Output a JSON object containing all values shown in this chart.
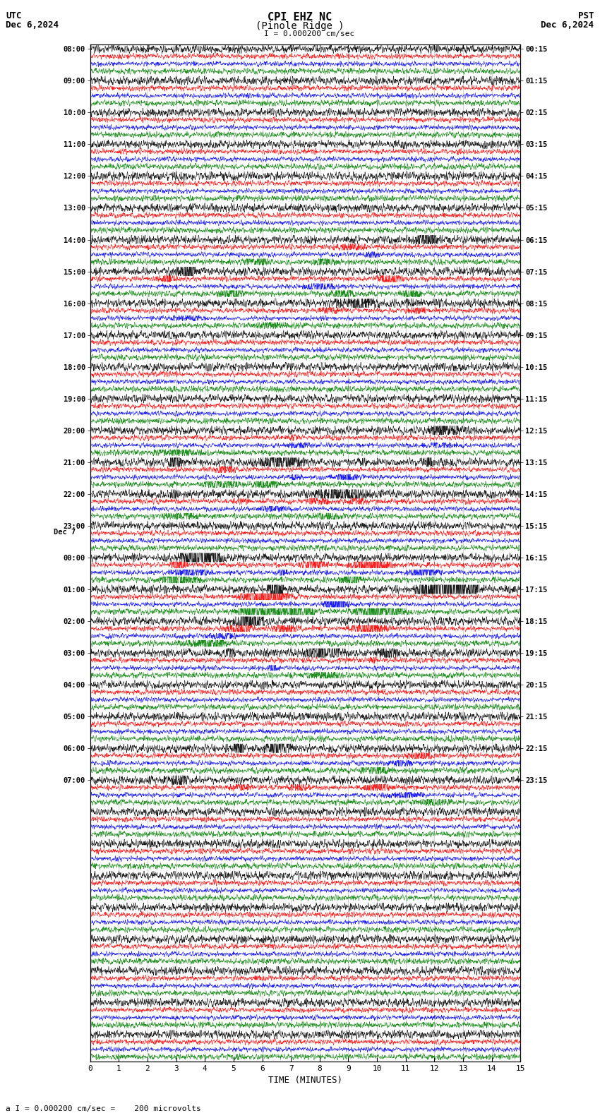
{
  "title_line1": "CPI EHZ NC",
  "title_line2": "(Pinole Ridge )",
  "scale_label": "I = 0.000200 cm/sec",
  "bottom_label": "a I = 0.000200 cm/sec =    200 microvolts",
  "utc_label": "UTC",
  "pst_label": "PST",
  "date_left": "Dec 6,2024",
  "date_right": "Dec 6,2024",
  "xlabel": "TIME (MINUTES)",
  "xlim": [
    0,
    15
  ],
  "xticks": [
    0,
    1,
    2,
    3,
    4,
    5,
    6,
    7,
    8,
    9,
    10,
    11,
    12,
    13,
    14,
    15
  ],
  "num_rows": 32,
  "traces_per_row": 4,
  "colors": [
    "black",
    "red",
    "blue",
    "green"
  ],
  "noise_scale": 0.055,
  "bg_color": "white",
  "grid_color": "#aaaaaa",
  "left_times_utc": [
    "08:00",
    "09:00",
    "10:00",
    "11:00",
    "12:00",
    "13:00",
    "14:00",
    "15:00",
    "16:00",
    "17:00",
    "18:00",
    "19:00",
    "20:00",
    "21:00",
    "22:00",
    "23:00",
    "Dec 7\n00:00",
    "01:00",
    "02:00",
    "03:00",
    "04:00",
    "05:00",
    "06:00",
    "07:00",
    "",
    "",
    "",
    "",
    "",
    "",
    "",
    "",
    "",
    "",
    "",
    "",
    "",
    "",
    "",
    "",
    "",
    "",
    "",
    "",
    "",
    "",
    "",
    "",
    "",
    "",
    "",
    "",
    "",
    "",
    "",
    "",
    "",
    "",
    "",
    "",
    "",
    "",
    "",
    ""
  ],
  "right_times_pst": [
    "00:15",
    "01:15",
    "02:15",
    "03:15",
    "04:15",
    "05:15",
    "06:15",
    "07:15",
    "08:15",
    "09:15",
    "10:15",
    "11:15",
    "12:15",
    "13:15",
    "14:15",
    "15:15",
    "16:15",
    "17:15",
    "18:15",
    "19:15",
    "20:15",
    "21:15",
    "22:15",
    "23:15",
    "",
    "",
    "",
    "",
    "",
    "",
    "",
    "",
    "",
    "",
    "",
    "",
    "",
    "",
    "",
    "",
    "",
    "",
    "",
    "",
    "",
    "",
    "",
    "",
    "",
    "",
    "",
    "",
    "",
    "",
    "",
    "",
    "",
    "",
    "",
    "",
    "",
    "",
    "",
    ""
  ],
  "active_rows": {
    "6": 1.5,
    "7": 2.5,
    "8": 1.2,
    "12": 1.3,
    "13": 1.8,
    "14": 1.2,
    "16": 4.0,
    "17": 8.0,
    "18": 2.5,
    "19": 1.5,
    "22": 1.8,
    "23": 1.5
  }
}
